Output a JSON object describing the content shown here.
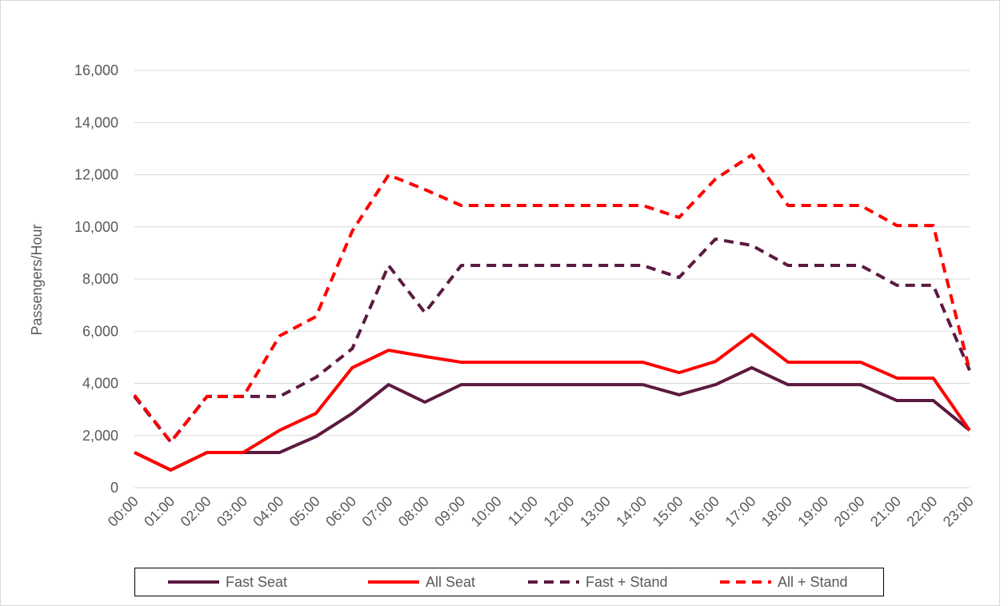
{
  "chart_data": {
    "type": "line",
    "y_label": "Passengers/Hour",
    "categories": [
      "00:00",
      "01:00",
      "02:00",
      "03:00",
      "04:00",
      "05:00",
      "06:00",
      "07:00",
      "08:00",
      "09:00",
      "10:00",
      "11:00",
      "12:00",
      "13:00",
      "14:00",
      "15:00",
      "16:00",
      "17:00",
      "18:00",
      "19:00",
      "20:00",
      "21:00",
      "22:00",
      "23:00"
    ],
    "series": [
      {
        "name": "Fast Seat",
        "color": "#5c1a40",
        "dashed": false,
        "values": [
          1350,
          675,
          1350,
          1350,
          1350,
          1960,
          2850,
          3950,
          3280,
          3950,
          3950,
          3950,
          3950,
          3950,
          3950,
          3560,
          3950,
          4600,
          3950,
          3950,
          3950,
          3340,
          3340,
          2200
        ]
      },
      {
        "name": "All Seat",
        "color": "#ff0000",
        "dashed": false,
        "values": [
          1350,
          675,
          1350,
          1350,
          2200,
          2850,
          4600,
          5270,
          5030,
          4810,
          4810,
          4810,
          4810,
          4810,
          4810,
          4410,
          4840,
          5880,
          4810,
          4810,
          4810,
          4200,
          4200,
          2200
        ]
      },
      {
        "name": "Fast + Stand",
        "color": "#5c1a40",
        "dashed": true,
        "values": [
          3500,
          1750,
          3500,
          3500,
          3500,
          4230,
          5330,
          8520,
          6710,
          8520,
          8520,
          8520,
          8520,
          8520,
          8520,
          8060,
          9530,
          9290,
          8520,
          8520,
          8520,
          7760,
          7760,
          4500
        ]
      },
      {
        "name": "All + Stand",
        "color": "#ff0000",
        "dashed": true,
        "values": [
          3550,
          1750,
          3500,
          3500,
          5820,
          6560,
          9840,
          11990,
          11430,
          10820,
          10820,
          10820,
          10820,
          10820,
          10820,
          10360,
          11830,
          12750,
          10820,
          10820,
          10820,
          10050,
          10050,
          4500
        ]
      }
    ],
    "ylim": [
      0,
      16000
    ],
    "yticks": [
      {
        "value": 0,
        "label": "0"
      },
      {
        "value": 2000,
        "label": "2,000"
      },
      {
        "value": 4000,
        "label": "4,000"
      },
      {
        "value": 6000,
        "label": "6,000"
      },
      {
        "value": 8000,
        "label": "8,000"
      },
      {
        "value": 10000,
        "label": "10,000"
      },
      {
        "value": 12000,
        "label": "12,000"
      },
      {
        "value": 14000,
        "label": "14,000"
      },
      {
        "value": 16000,
        "label": "16,000"
      }
    ],
    "grid": true,
    "legend": "bottom"
  }
}
